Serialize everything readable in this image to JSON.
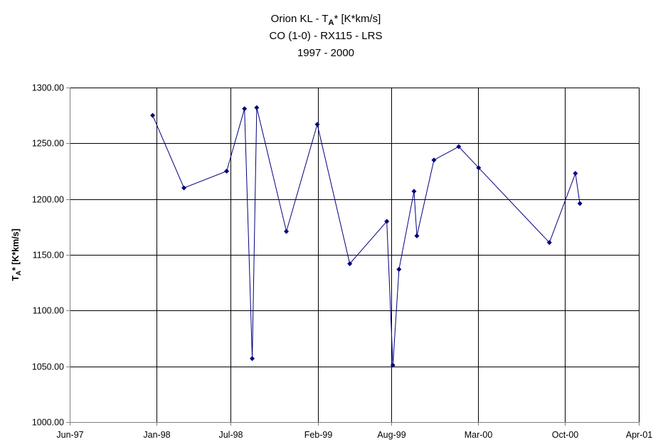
{
  "chart_data": {
    "type": "line",
    "title_lines": [
      {
        "pre": "Orion KL - T",
        "sub": "A",
        "post": "* [K*km/s]"
      },
      {
        "pre": "CO (1-0) - RX115 - LRS",
        "sub": "",
        "post": ""
      },
      {
        "pre": "1997 - 2000",
        "sub": "",
        "post": ""
      }
    ],
    "ylabel": {
      "pre": "T",
      "sub": "A",
      "post": "* [K*km/s]"
    },
    "xlabel": "",
    "x_type": "date",
    "xlim": [
      "1997-06-01",
      "2001-04-01"
    ],
    "ylim": [
      1000,
      1300
    ],
    "x_ticks": [
      {
        "date": "1997-06-01",
        "label": "Jun-97"
      },
      {
        "date": "1998-01-01",
        "label": "Jan-98"
      },
      {
        "date": "1998-07-01",
        "label": "Jul-98"
      },
      {
        "date": "1999-02-01",
        "label": "Feb-99"
      },
      {
        "date": "1999-08-01",
        "label": "Aug-99"
      },
      {
        "date": "2000-03-01",
        "label": "Mar-00"
      },
      {
        "date": "2000-10-01",
        "label": "Oct-00"
      },
      {
        "date": "2001-04-01",
        "label": "Apr-01"
      }
    ],
    "y_ticks": [
      "1000.00",
      "1050.00",
      "1100.00",
      "1150.00",
      "1200.00",
      "1250.00",
      "1300.00"
    ],
    "grid": true,
    "legend": "none",
    "colors": {
      "line": "#00007f",
      "marker": "#00007f",
      "grid": "#000000",
      "axis": "#808080"
    },
    "series": [
      {
        "points": [
          {
            "x": "1997-12-22",
            "y": 1275
          },
          {
            "x": "1998-03-09",
            "y": 1210
          },
          {
            "x": "1998-06-22",
            "y": 1225
          },
          {
            "x": "1998-08-05",
            "y": 1281
          },
          {
            "x": "1998-08-24",
            "y": 1057
          },
          {
            "x": "1998-09-04",
            "y": 1282
          },
          {
            "x": "1998-11-16",
            "y": 1171
          },
          {
            "x": "1999-01-31",
            "y": 1267
          },
          {
            "x": "1999-04-21",
            "y": 1142
          },
          {
            "x": "1999-07-21",
            "y": 1180
          },
          {
            "x": "1999-08-05",
            "y": 1051
          },
          {
            "x": "1999-08-20",
            "y": 1137
          },
          {
            "x": "1999-09-26",
            "y": 1207
          },
          {
            "x": "1999-10-03",
            "y": 1167
          },
          {
            "x": "1999-11-14",
            "y": 1235
          },
          {
            "x": "2000-01-14",
            "y": 1247
          },
          {
            "x": "2000-03-03",
            "y": 1228
          },
          {
            "x": "2000-08-24",
            "y": 1161
          },
          {
            "x": "2000-10-27",
            "y": 1223
          },
          {
            "x": "2000-11-07",
            "y": 1196
          }
        ]
      }
    ]
  }
}
